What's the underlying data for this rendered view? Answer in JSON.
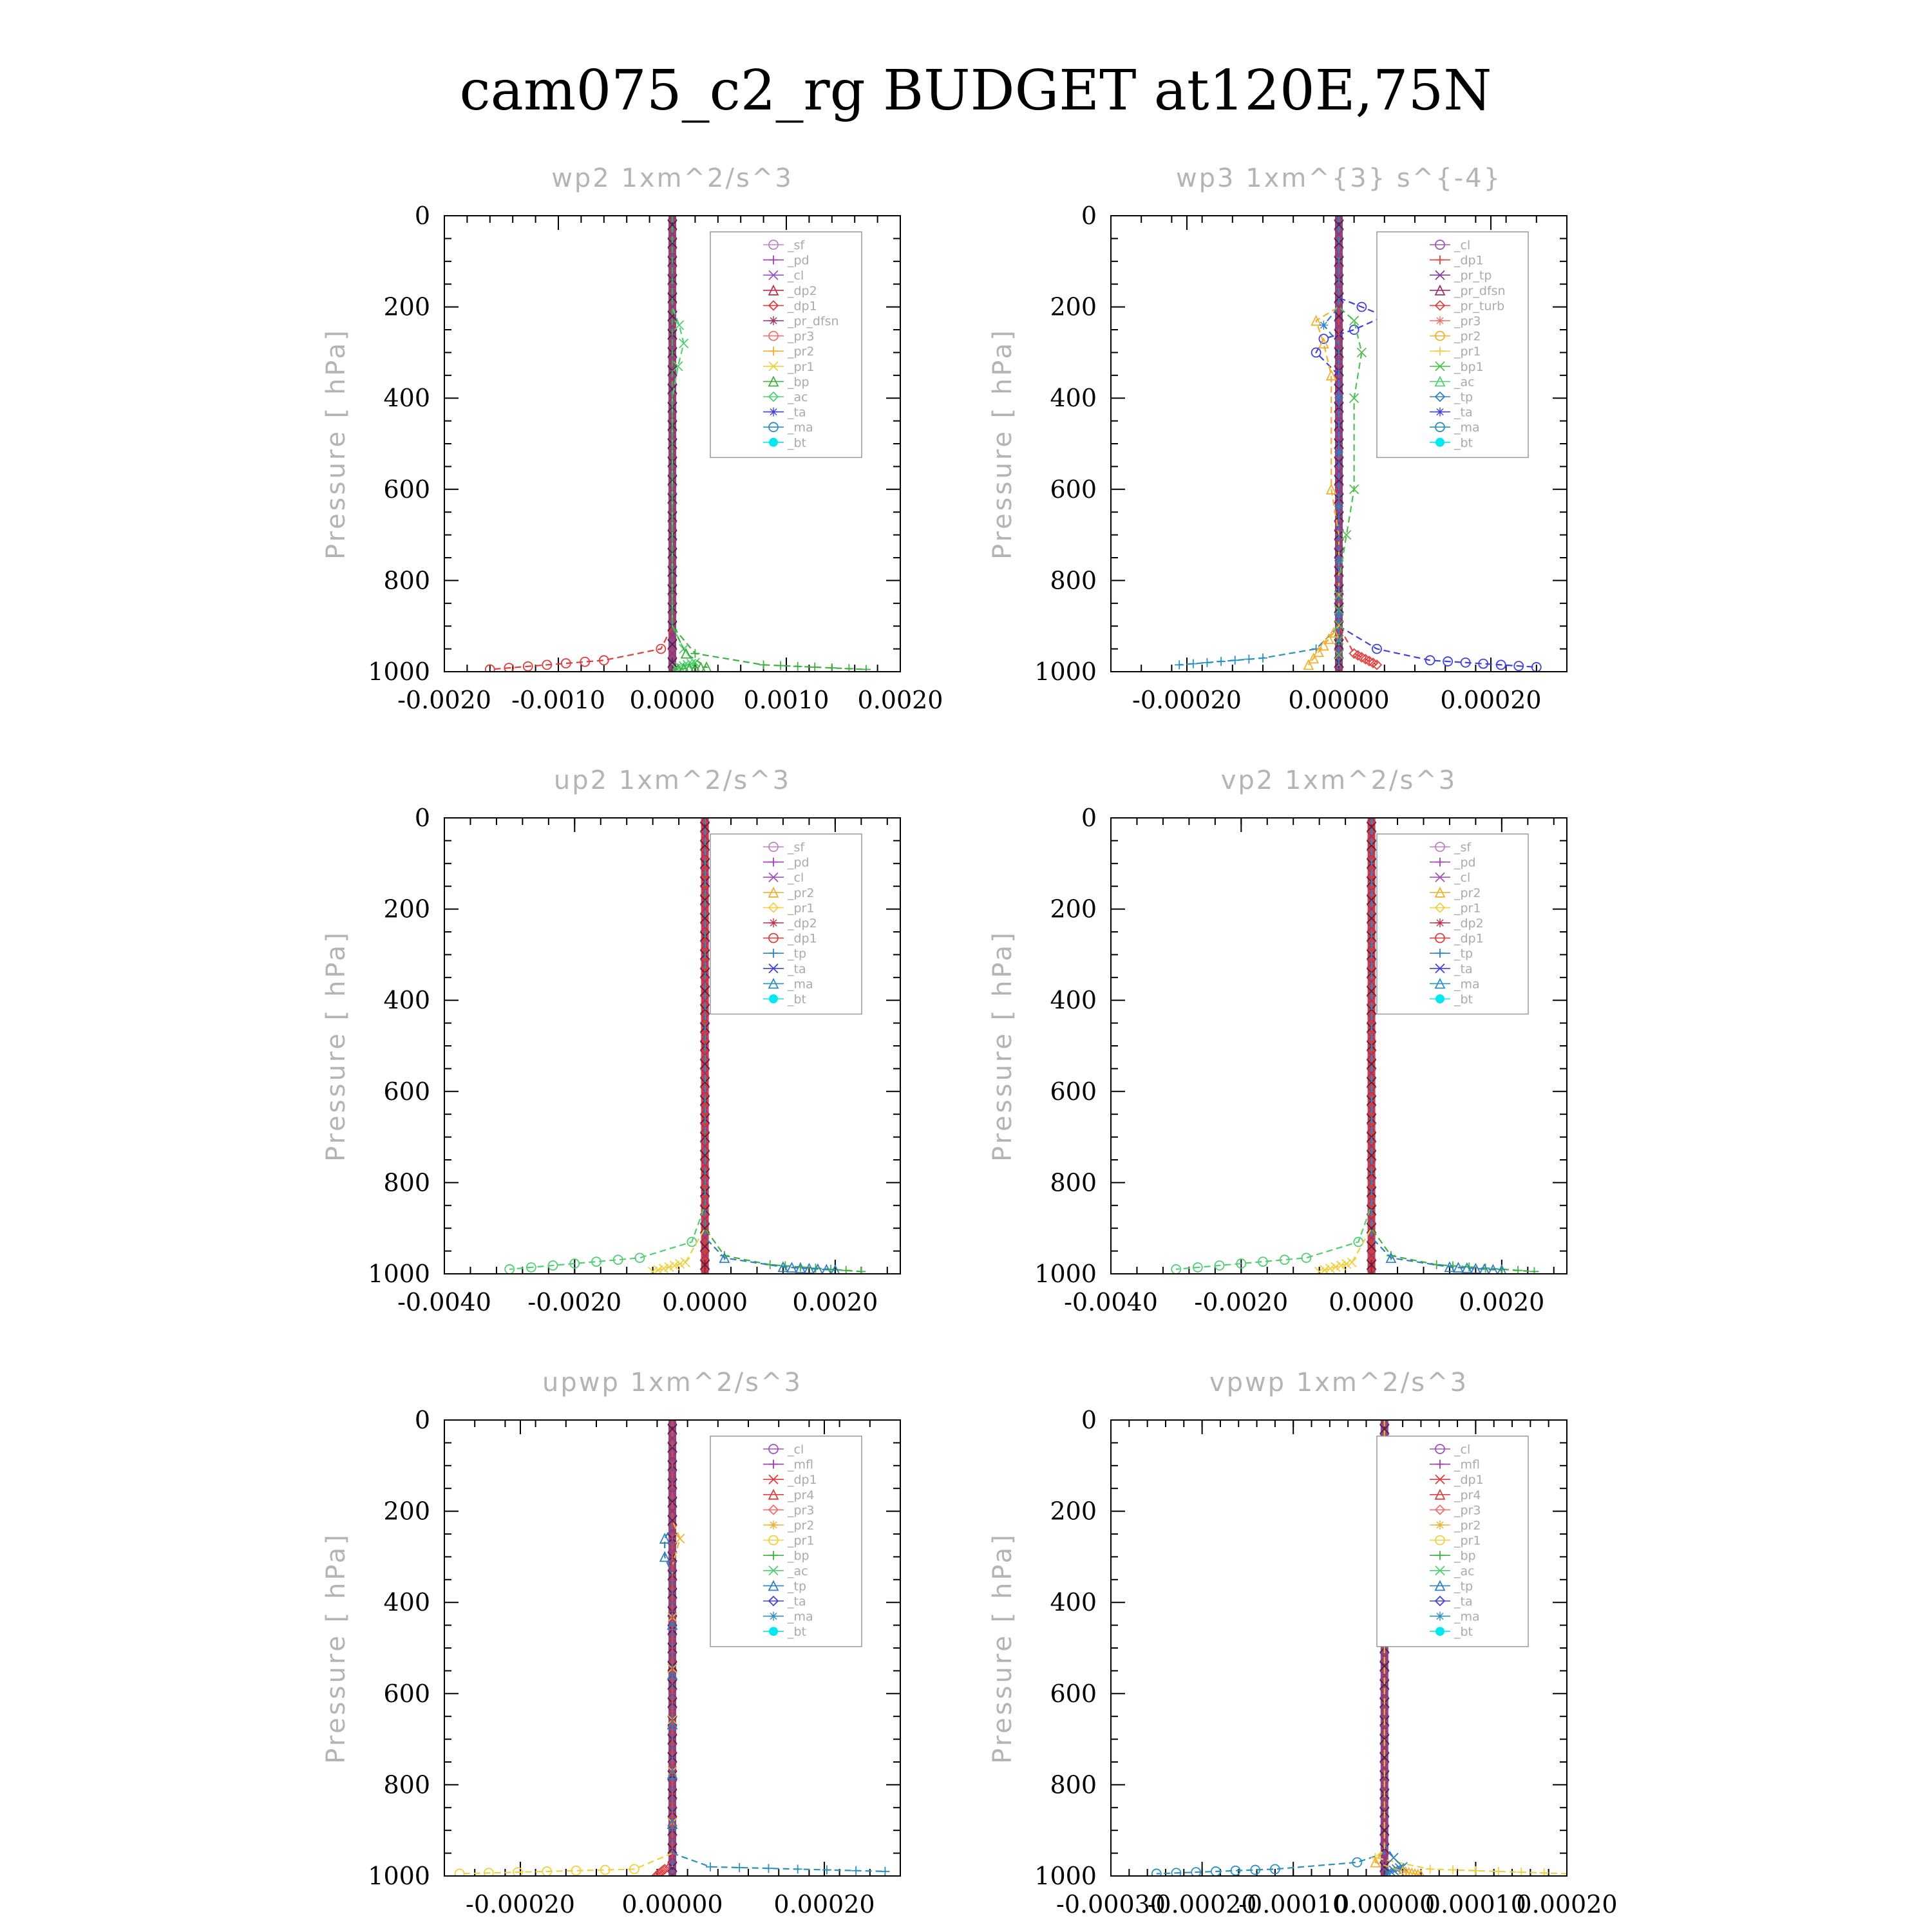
{
  "figure_title": "cam075_c2_rg  BUDGET at120E,75N",
  "colors": {
    "_sf": "#c080c8",
    "_pd": "#a040b0",
    "_cl": "#a050c0",
    "_mfl": "#9a3ca8",
    "_dp2": "#c0304a",
    "_dp1": "#e03c3c",
    "_pr_tp": "#8a3aa0",
    "_pr_dfsn": "#a0306a",
    "_pr_turb": "#e04040",
    "_pr_dfsn_wp2": "#f04040",
    "_pr4": "#e04040",
    "_pr3": "#f07070",
    "_pr2": "#f0b030",
    "_pr1": "#f0d040",
    "_bp": "#40b040",
    "_bp1": "#50c050",
    "_ac": "#50d070",
    "_tp": "#3080c0",
    "_ta": "#4040e0",
    "_ma": "#2a90c0",
    "_bt": "#00e8f0"
  },
  "chart_data": [
    {
      "type": "line",
      "title": "wp2   1xm^2/s^3",
      "ylabel": "Pressure [ hPa]",
      "xlim": [
        -0.002,
        0.002
      ],
      "ylim": [
        1000,
        0
      ],
      "xticks": [
        "-0.0020",
        "-0.0010",
        "0.0000",
        "0.0010",
        "0.0020"
      ],
      "yticks": [
        "0",
        "200",
        "400",
        "600",
        "800",
        "1000"
      ],
      "legend": [
        "_sf",
        "_pd",
        "_cl",
        "_dp2",
        "_dp1",
        "_pr_dfsn",
        "_pr3",
        "_pr2",
        "_pr1",
        "_bp",
        "_ac",
        "_ta",
        "_ma",
        "_bt"
      ],
      "legend_position": "top-right",
      "series": [
        {
          "name": "_dp1",
          "color": "#e03c3c",
          "points": [
            [
              0,
              0
            ],
            [
              0,
              900
            ],
            [
              -0.0001,
              950
            ],
            [
              -0.0006,
              975
            ],
            [
              -0.0016,
              995
            ]
          ]
        },
        {
          "name": "_pr1",
          "color": "#40b040",
          "points": [
            [
              0,
              0
            ],
            [
              0,
              900
            ],
            [
              0.0002,
              960
            ],
            [
              0.0008,
              985
            ],
            [
              0.0017,
              995
            ]
          ]
        },
        {
          "name": "_ac",
          "color": "#50d070",
          "points": [
            [
              0,
              0
            ],
            [
              0,
              200
            ],
            [
              6e-05,
              240
            ],
            [
              0.0001,
              280
            ],
            [
              5e-05,
              330
            ],
            [
              0,
              400
            ],
            [
              0,
              900
            ],
            [
              0.0001,
              950
            ],
            [
              0.0002,
              980
            ],
            [
              0,
              995
            ]
          ]
        },
        {
          "name": "_bp",
          "color": "#40b040",
          "points": [
            [
              0,
              0
            ],
            [
              0,
              900
            ],
            [
              0.00012,
              960
            ],
            [
              0.0003,
              990
            ],
            [
              0,
              995
            ]
          ]
        }
      ]
    },
    {
      "type": "line",
      "title": "wp3   1xm^{3} s^{-4}",
      "ylabel": "Pressure [ hPa]",
      "xlim": [
        -0.0003,
        0.0003
      ],
      "ylim": [
        1000,
        0
      ],
      "xticks": [
        "-0.00020",
        "0.00000",
        "0.00020"
      ],
      "yticks": [
        "0",
        "200",
        "400",
        "600",
        "800",
        "1000"
      ],
      "legend": [
        "_cl",
        "_dp1",
        "_pr_tp",
        "_pr_dfsn",
        "_pr_turb",
        "_pr3",
        "_pr2",
        "_pr1",
        "_bp1",
        "_ac",
        "_tp",
        "_ta",
        "_ma",
        "_bt"
      ],
      "legend_position": "top-right",
      "series": [
        {
          "name": "_ta",
          "color": "#4040e0",
          "points": [
            [
              0,
              0
            ],
            [
              0,
              180
            ],
            [
              3e-05,
              200
            ],
            [
              6e-05,
              220
            ],
            [
              2e-05,
              250
            ],
            [
              -2e-05,
              270
            ],
            [
              -3e-05,
              300
            ],
            [
              0,
              350
            ],
            [
              0,
              900
            ],
            [
              5e-05,
              950
            ],
            [
              0.00012,
              975
            ],
            [
              0.00026,
              990
            ]
          ]
        },
        {
          "name": "_ma",
          "color": "#2a90c0",
          "points": [
            [
              0,
              0
            ],
            [
              0,
              900
            ],
            [
              -3e-05,
              950
            ],
            [
              -0.0001,
              970
            ],
            [
              -0.00021,
              985
            ]
          ]
        },
        {
          "name": "_bp1",
          "color": "#50c050",
          "points": [
            [
              0,
              0
            ],
            [
              0,
              200
            ],
            [
              2e-05,
              230
            ],
            [
              3e-05,
              300
            ],
            [
              2e-05,
              400
            ],
            [
              2e-05,
              600
            ],
            [
              1e-05,
              700
            ],
            [
              0,
              800
            ],
            [
              0,
              995
            ]
          ]
        },
        {
          "name": "_pr2",
          "color": "#f0b030",
          "points": [
            [
              0,
              0
            ],
            [
              0,
              200
            ],
            [
              -3e-05,
              230
            ],
            [
              -2e-05,
              280
            ],
            [
              -1e-05,
              350
            ],
            [
              -1e-05,
              600
            ],
            [
              0,
              700
            ],
            [
              0,
              900
            ],
            [
              -4e-05,
              985
            ]
          ]
        },
        {
          "name": "_pr_turb",
          "color": "#e04040",
          "points": [
            [
              0,
              0
            ],
            [
              0,
              900
            ],
            [
              2e-05,
              960
            ],
            [
              5e-05,
              985
            ]
          ]
        },
        {
          "name": "_tp",
          "color": "#3080c0",
          "points": [
            [
              0,
              0
            ],
            [
              0,
              200
            ],
            [
              -2e-05,
              240
            ],
            [
              0,
              280
            ],
            [
              0,
              995
            ]
          ]
        }
      ]
    },
    {
      "type": "line",
      "title": "up2   1xm^2/s^3",
      "ylabel": "Pressure [ hPa]",
      "xlim": [
        -0.004,
        0.003
      ],
      "ylim": [
        1000,
        0
      ],
      "xticks": [
        "-0.0040",
        "-0.0020",
        "0.0000",
        "0.0020"
      ],
      "yticks": [
        "0",
        "200",
        "400",
        "600",
        "800",
        "1000"
      ],
      "legend": [
        "_sf",
        "_pd",
        "_cl",
        "_pr2",
        "_pr1",
        "_dp2",
        "_dp1",
        "_tp",
        "_ta",
        "_ma",
        "_bt"
      ],
      "legend_position": "top-right",
      "series": [
        {
          "name": "_dp1",
          "color": "#50d070",
          "points": [
            [
              0,
              0
            ],
            [
              0,
              850
            ],
            [
              -0.0002,
              930
            ],
            [
              -0.001,
              965
            ],
            [
              -0.003,
              990
            ]
          ]
        },
        {
          "name": "_dp2",
          "color": "#40b040",
          "points": [
            [
              0,
              0
            ],
            [
              0,
              900
            ],
            [
              0.0003,
              960
            ],
            [
              0.001,
              980
            ],
            [
              0.0024,
              995
            ]
          ]
        },
        {
          "name": "_pr1",
          "color": "#f0d040",
          "points": [
            [
              0,
              0
            ],
            [
              0,
              900
            ],
            [
              -0.0003,
              975
            ],
            [
              -0.0008,
              995
            ]
          ]
        },
        {
          "name": "_tp",
          "color": "#3080c0",
          "points": [
            [
              0,
              0
            ],
            [
              0,
              920
            ],
            [
              0.0003,
              965
            ],
            [
              0.0012,
              985
            ],
            [
              0.002,
              992
            ]
          ]
        }
      ]
    },
    {
      "type": "line",
      "title": "vp2   1xm^2/s^3",
      "ylabel": "Pressure [ hPa]",
      "xlim": [
        -0.004,
        0.003
      ],
      "ylim": [
        1000,
        0
      ],
      "xticks": [
        "-0.0040",
        "-0.0020",
        "0.0000",
        "0.0020"
      ],
      "yticks": [
        "0",
        "200",
        "400",
        "600",
        "800",
        "1000"
      ],
      "legend": [
        "_sf",
        "_pd",
        "_cl",
        "_pr2",
        "_pr1",
        "_dp2",
        "_dp1",
        "_tp",
        "_ta",
        "_ma",
        "_bt"
      ],
      "legend_position": "top-right",
      "series": [
        {
          "name": "_dp1",
          "color": "#50d070",
          "points": [
            [
              0,
              0
            ],
            [
              0,
              850
            ],
            [
              -0.0002,
              930
            ],
            [
              -0.001,
              965
            ],
            [
              -0.003,
              990
            ]
          ]
        },
        {
          "name": "_dp2",
          "color": "#40b040",
          "points": [
            [
              0,
              0
            ],
            [
              0,
              900
            ],
            [
              0.0003,
              960
            ],
            [
              0.001,
              980
            ],
            [
              0.0025,
              995
            ]
          ]
        },
        {
          "name": "_pr1",
          "color": "#f0d040",
          "points": [
            [
              0,
              0
            ],
            [
              0,
              900
            ],
            [
              -0.0003,
              975
            ],
            [
              -0.0008,
              995
            ]
          ]
        },
        {
          "name": "_tp",
          "color": "#3080c0",
          "points": [
            [
              0,
              0
            ],
            [
              0,
              920
            ],
            [
              0.0003,
              965
            ],
            [
              0.0012,
              985
            ],
            [
              0.002,
              992
            ]
          ]
        }
      ]
    },
    {
      "type": "line",
      "title": "upwp   1xm^2/s^3",
      "ylabel": "Pressure [ hPa]",
      "xlim": [
        -0.0003,
        0.0003
      ],
      "ylim": [
        1000,
        0
      ],
      "xticks": [
        "-0.00020",
        "0.00000",
        "0.00020"
      ],
      "yticks": [
        "0",
        "200",
        "400",
        "600",
        "800",
        "1000"
      ],
      "legend": [
        "_cl",
        "_mfl",
        "_dp1",
        "_pr4",
        "_pr3",
        "_pr2",
        "_pr1",
        "_bp",
        "_ac",
        "_tp",
        "_ta",
        "_ma",
        "_bt"
      ],
      "legend_position": "top-right",
      "series": [
        {
          "name": "_pr1",
          "color": "#f0d040",
          "points": [
            [
              0,
              0
            ],
            [
              0,
              950
            ],
            [
              -5e-05,
              985
            ],
            [
              -0.00028,
              995
            ]
          ]
        },
        {
          "name": "_ma",
          "color": "#2a90c0",
          "points": [
            [
              0,
              0
            ],
            [
              0,
              950
            ],
            [
              5e-05,
              980
            ],
            [
              0.00028,
              990
            ]
          ]
        },
        {
          "name": "_pr2",
          "color": "#f0b030",
          "points": [
            [
              0,
              0
            ],
            [
              0,
              220
            ],
            [
              1e-05,
              260
            ],
            [
              0,
              320
            ],
            [
              0,
              995
            ]
          ]
        },
        {
          "name": "_tp",
          "color": "#3080c0",
          "points": [
            [
              0,
              0
            ],
            [
              0,
              230
            ],
            [
              -1e-05,
              260
            ],
            [
              -1e-05,
              300
            ],
            [
              0,
              340
            ],
            [
              0,
              995
            ]
          ]
        },
        {
          "name": "_pr4",
          "color": "#e04040",
          "points": [
            [
              0,
              0
            ],
            [
              0,
              960
            ],
            [
              -1e-05,
              985
            ],
            [
              -2e-05,
              998
            ]
          ]
        }
      ]
    },
    {
      "type": "line",
      "title": "vpwp   1xm^2/s^3",
      "ylabel": "Pressure [ hPa]",
      "xlim": [
        -0.0003,
        0.0002
      ],
      "ylim": [
        1000,
        0
      ],
      "xticks": [
        "-0.00030",
        "-0.00020",
        "-0.00010",
        "0.00000",
        "0.00010",
        "0.00020"
      ],
      "yticks": [
        "0",
        "200",
        "400",
        "600",
        "800",
        "1000"
      ],
      "legend": [
        "_cl",
        "_mfl",
        "_dp1",
        "_pr4",
        "_pr3",
        "_pr2",
        "_pr1",
        "_bp",
        "_ac",
        "_tp",
        "_ta",
        "_ma",
        "_bt"
      ],
      "legend_position": "top-right",
      "series": [
        {
          "name": "_ma",
          "color": "#2a90c0",
          "points": [
            [
              0,
              0
            ],
            [
              0,
              950
            ],
            [
              -3e-05,
              970
            ],
            [
              -0.00012,
              985
            ],
            [
              -0.00025,
              995
            ]
          ]
        },
        {
          "name": "_pr1",
          "color": "#f0d040",
          "points": [
            [
              0,
              0
            ],
            [
              0,
              940
            ],
            [
              -1e-05,
              960
            ],
            [
              5e-05,
              985
            ],
            [
              0.0002,
              995
            ]
          ]
        },
        {
          "name": "_tp",
          "color": "#3080c0",
          "points": [
            [
              0,
              0
            ],
            [
              0,
              930
            ],
            [
              1e-05,
              960
            ],
            [
              2e-05,
              980
            ],
            [
              0,
              995
            ]
          ]
        },
        {
          "name": "_pr2",
          "color": "#f0b030",
          "points": [
            [
              0,
              0
            ],
            [
              0,
              940
            ],
            [
              -1e-05,
              970
            ],
            [
              2e-05,
              990
            ],
            [
              4e-05,
              998
            ]
          ]
        }
      ]
    }
  ]
}
